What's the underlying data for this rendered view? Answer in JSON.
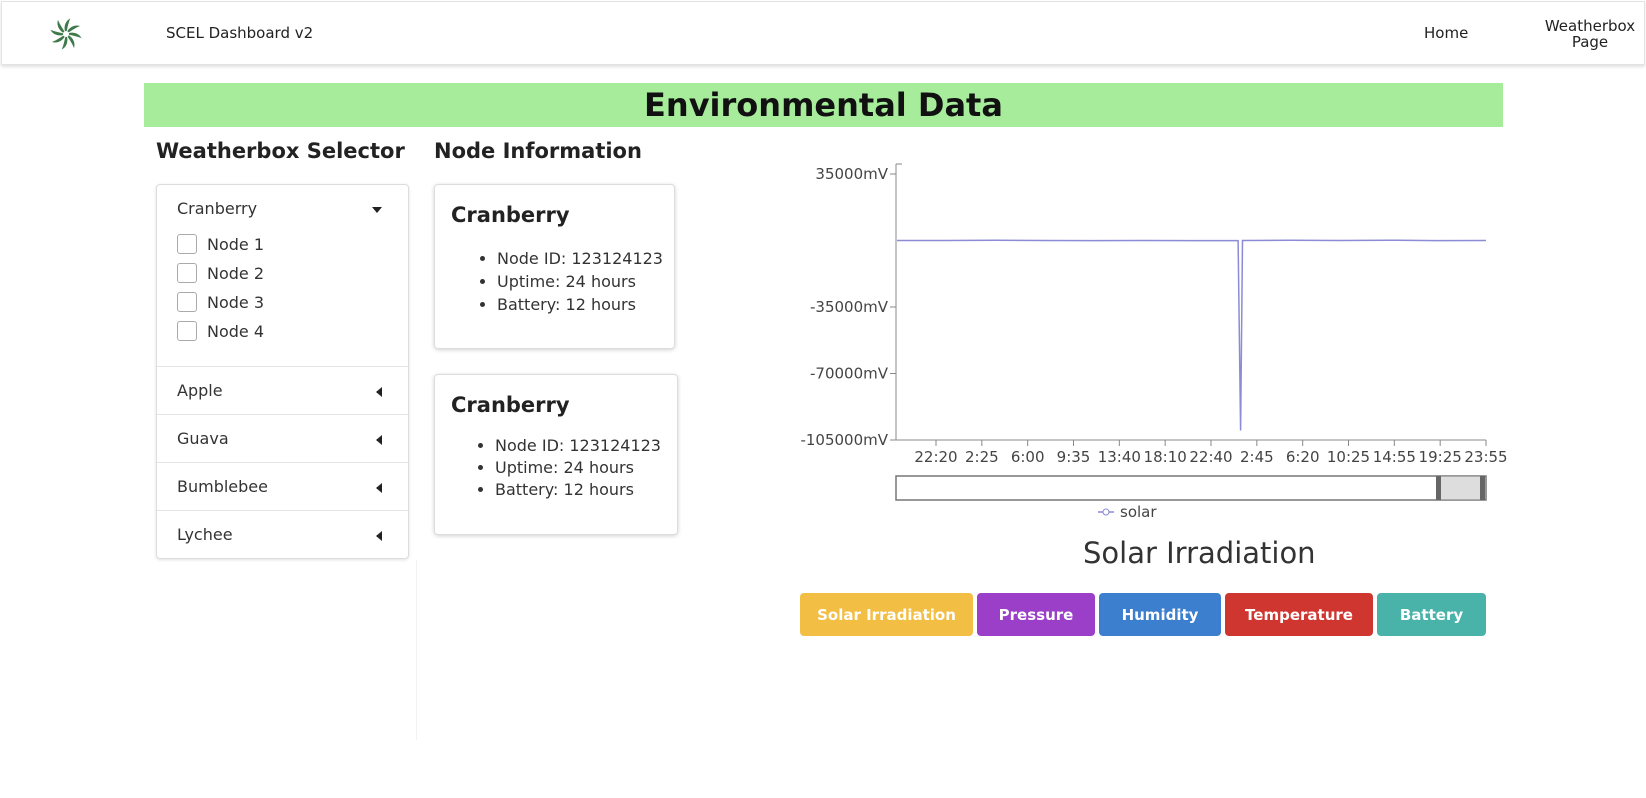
{
  "nav": {
    "app_title": "SCEL Dashboard v2",
    "links": [
      "Home",
      "Weatherbox Page"
    ],
    "logo_icon": "pinwheel-logo-icon"
  },
  "banner": {
    "title": "Environmental Data"
  },
  "selector": {
    "heading": "Weatherbox Selector",
    "groups": [
      {
        "label": "Cranberry",
        "expanded": true,
        "nodes": [
          "Node 1",
          "Node 2",
          "Node 3",
          "Node 4"
        ]
      },
      {
        "label": "Apple",
        "expanded": false
      },
      {
        "label": "Guava",
        "expanded": false
      },
      {
        "label": "Bumblebee",
        "expanded": false
      },
      {
        "label": "Lychee",
        "expanded": false
      }
    ]
  },
  "node_info": {
    "heading": "Node Information",
    "cards": [
      {
        "title": "Cranberry",
        "items": [
          "Node ID: 123124123",
          "Uptime: 24 hours",
          "Battery: 12 hours"
        ]
      },
      {
        "title": "Cranberry",
        "items": [
          "Node ID: 123124123",
          "Uptime: 24 hours",
          "Battery: 12 hours"
        ]
      }
    ]
  },
  "chart_data": {
    "type": "line",
    "title": "Solar Irradiation",
    "y_ticks": [
      "35000mV",
      "-35000mV",
      "-70000mV",
      "-105000mV"
    ],
    "x_ticks": [
      "22:20",
      "2:25",
      "6:00",
      "9:35",
      "13:40",
      "18:10",
      "22:40",
      "2:45",
      "6:20",
      "10:25",
      "14:55",
      "19:25",
      "23:55"
    ],
    "ylim": [
      -105000,
      35000
    ],
    "series": [
      {
        "name": "solar",
        "color": "#8b8bd6",
        "points": [
          [
            0,
            0
          ],
          [
            1,
            0
          ],
          [
            2,
            150
          ],
          [
            3,
            0
          ],
          [
            4,
            -60
          ],
          [
            5,
            0
          ],
          [
            6,
            -60
          ],
          [
            6.95,
            -60
          ],
          [
            7.0,
            -100000
          ],
          [
            7.04,
            0
          ],
          [
            8,
            150
          ],
          [
            9,
            0
          ],
          [
            10,
            150
          ],
          [
            11,
            -60
          ],
          [
            12,
            0
          ]
        ]
      }
    ],
    "grid": false,
    "legend": "bottom",
    "range_slider": true
  },
  "metric_buttons": [
    {
      "label": "Solar Irradiation",
      "color": "#f2be44"
    },
    {
      "label": "Pressure",
      "color": "#9b3fc9"
    },
    {
      "label": "Humidity",
      "color": "#3b7fce"
    },
    {
      "label": "Temperature",
      "color": "#cf3630"
    },
    {
      "label": "Battery",
      "color": "#4ab3a9"
    }
  ]
}
